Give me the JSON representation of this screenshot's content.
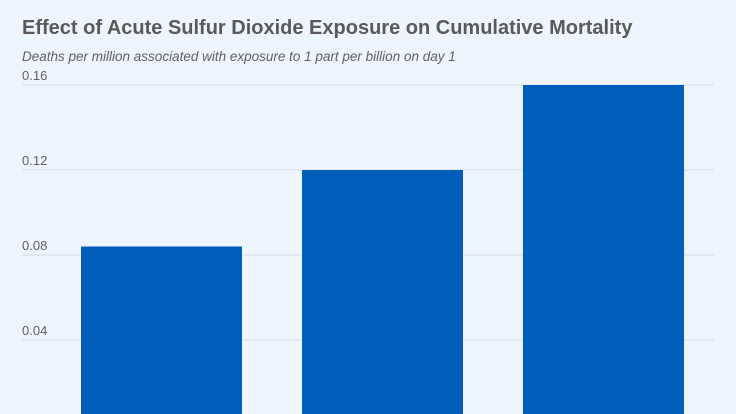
{
  "title": "Effect of Acute Sulfur Dioxide Exposure on Cumulative Mortality",
  "subtitle": "Deaths per million associated with exposure to 1 part per billion on day 1",
  "colors": {
    "background": "#eef5fd",
    "bar": "#005eb8",
    "grid": "#d5dde6",
    "title": "#5a5a5a",
    "tick": "#5f5f5f"
  },
  "chart_data": {
    "type": "bar",
    "title": "Effect of Acute Sulfur Dioxide Exposure on Cumulative Mortality",
    "subtitle": "Deaths per million associated with exposure to 1 part per billion on day 1",
    "xlabel": "",
    "ylabel": "",
    "yticks": [
      "0.04",
      "0.08",
      "0.12",
      "0.16"
    ],
    "ylim": [
      0,
      0.16
    ],
    "grid": true,
    "values": [
      0.084,
      0.12,
      0.16
    ]
  }
}
